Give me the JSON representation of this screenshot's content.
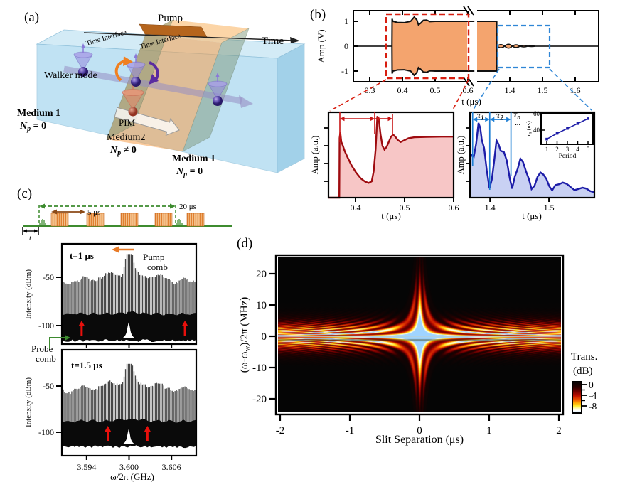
{
  "colors": {
    "orange_fill": "#f4a46e",
    "red_dash": "#d81e10",
    "blue_dash": "#2f86d6",
    "dark_red": "#9e0b0f",
    "pink_fill": "#f7c6c6",
    "dark_blue": "#1d1da8",
    "blue_fill": "#c9d1f3",
    "green": "#3d8b2f",
    "brown": "#8b4a17",
    "pump_orange": "#e87a26",
    "red_arrow": "#e8100c",
    "navy": "#15256e",
    "purple": "#6a3fa0",
    "medium2_orange": "#e06010"
  },
  "panel_a": {
    "label": "(a)",
    "time": "Time",
    "pump": "Pump",
    "interface1": "Time Interface",
    "interface2": "Time Interface",
    "walker": "Walker mode",
    "pim": "PIM",
    "medium1_left": "Medium 1",
    "medium2": "Medium2",
    "medium1_right": "Medium 1",
    "np_base": "N",
    "np_sub": "p",
    "np_eq0": " = 0",
    "np_neq0": " ≠ 0"
  },
  "panel_b": {
    "label": "(b)",
    "ylabel": "Amp (V)",
    "xlabel": "t (μs)",
    "red_inset": {
      "ylabel": "Amp (a.u.)",
      "xlabel": "t (μs)"
    },
    "blue_inset": {
      "ylabel": "Amp (a.u.)",
      "xlabel": "t (μs)",
      "tau_base": "τ",
      "tau1_sub": "1",
      "tau2_sub": "2",
      "taun_sub": "n",
      "dots": "..."
    },
    "period_inset": {
      "ylabel_base": "τ",
      "ylabel_sub": "n",
      "ylabel_rest": " (ns)",
      "xlabel": "Period"
    }
  },
  "panel_c": {
    "label": "(c)",
    "t_label": "t",
    "five_us": "5 μs",
    "twenty_us": "20 μs",
    "plot1_title": "t=1 μs",
    "plot2_title": "t=1.5 μs",
    "ylabel": "Intensity (dBm)",
    "xlabel": "ω/2π (GHz)",
    "pump_line1": "Pump",
    "pump_line2": "comb",
    "probe_line1": "Probe",
    "probe_line2": "comb"
  },
  "panel_d": {
    "label": "(d)",
    "xlabel": "Slit Separation (μs)",
    "ylabel_pre": "(ω-ω",
    "ylabel_sub": "w",
    "ylabel_post": ")/2π (MHz)",
    "colorbar_title1": "Trans.",
    "colorbar_title2": "(dB)"
  },
  "chart_data": [
    {
      "id": "b_main",
      "type": "area",
      "xlabel": "t (μs)",
      "ylabel": "Amp (V)",
      "x_ticks_left": [
        [
          0.3,
          "0.3"
        ],
        [
          0.4,
          "0.4"
        ],
        [
          0.5,
          "0.5"
        ],
        [
          0.6,
          "0.6"
        ]
      ],
      "x_ticks_right": [
        [
          1.4,
          "1.4"
        ],
        [
          1.5,
          "1.5"
        ],
        [
          1.6,
          "1.6"
        ]
      ],
      "y_ticks": [
        [
          1,
          "1"
        ],
        [
          0,
          "0"
        ],
        [
          -1,
          "-1"
        ]
      ],
      "broken_axis": true,
      "pulse_on_us": 0.368,
      "pulse_off_us": 1.36,
      "amp_V": 1.0,
      "envelope_top": [
        [
          0.368,
          0
        ],
        [
          0.3685,
          1.1
        ],
        [
          0.371,
          1.0
        ],
        [
          0.385,
          0.955
        ],
        [
          0.405,
          0.945
        ],
        [
          0.425,
          1.0
        ],
        [
          0.436,
          1.17
        ],
        [
          0.444,
          1.06
        ],
        [
          0.449,
          0.86
        ],
        [
          0.456,
          0.93
        ],
        [
          0.464,
          1.04
        ],
        [
          0.474,
          1.05
        ],
        [
          0.484,
          0.99
        ],
        [
          0.5,
          1.0
        ],
        [
          0.62,
          1.0
        ]
      ],
      "ringdown": {
        "start_us": 1.3725,
        "period_us": 0.0235,
        "amps_V": [
          0.13,
          0.155,
          0.11,
          0.055,
          0.028
        ]
      },
      "red_box_t": [
        0.35,
        0.602
      ],
      "blue_box_t": [
        1.363,
        1.522
      ]
    },
    {
      "id": "b_zoom_red",
      "type": "line",
      "xlabel": "t (μs)",
      "ylabel": "Amp (a.u.)",
      "x_ticks": [
        [
          0.4,
          "0.4"
        ],
        [
          0.5,
          "0.5"
        ],
        [
          0.6,
          "0.6"
        ]
      ],
      "x_range": [
        0.345,
        0.6
      ],
      "marker_lines_t": [
        0.368,
        0.439,
        0.475
      ],
      "points": [
        [
          0.345,
          0
        ],
        [
          0.367,
          0
        ],
        [
          0.3675,
          0.64
        ],
        [
          0.369,
          0.7
        ],
        [
          0.371,
          0.6
        ],
        [
          0.374,
          0.56
        ],
        [
          0.378,
          0.5
        ],
        [
          0.384,
          0.43
        ],
        [
          0.392,
          0.345
        ],
        [
          0.401,
          0.27
        ],
        [
          0.411,
          0.205
        ],
        [
          0.42,
          0.17
        ],
        [
          0.427,
          0.158
        ],
        [
          0.433,
          0.175
        ],
        [
          0.437,
          0.28
        ],
        [
          0.441,
          0.52
        ],
        [
          0.4445,
          0.875
        ],
        [
          0.4475,
          0.84
        ],
        [
          0.451,
          0.68
        ],
        [
          0.455,
          0.555
        ],
        [
          0.459,
          0.515
        ],
        [
          0.4635,
          0.545
        ],
        [
          0.468,
          0.6
        ],
        [
          0.4725,
          0.655
        ],
        [
          0.477,
          0.675
        ],
        [
          0.481,
          0.655
        ],
        [
          0.486,
          0.62
        ],
        [
          0.492,
          0.598
        ],
        [
          0.499,
          0.615
        ],
        [
          0.508,
          0.638
        ],
        [
          0.52,
          0.648
        ],
        [
          0.545,
          0.652
        ],
        [
          0.575,
          0.655
        ],
        [
          0.6,
          0.655
        ]
      ]
    },
    {
      "id": "b_zoom_blue",
      "type": "line",
      "xlabel": "t (μs)",
      "ylabel": "Amp (a.u.)",
      "x_ticks": [
        [
          1.4,
          "1.4"
        ],
        [
          1.5,
          "1.5"
        ]
      ],
      "x_range": [
        1.366,
        1.577
      ],
      "tau_lines_t": [
        1.3705,
        1.3995,
        1.4355
      ],
      "points": [
        [
          1.366,
          0.42
        ],
        [
          1.3695,
          0.48
        ],
        [
          1.3725,
          0.44
        ],
        [
          1.3765,
          0.6
        ],
        [
          1.3805,
          0.8
        ],
        [
          1.3835,
          0.76
        ],
        [
          1.386,
          0.62
        ],
        [
          1.39,
          0.52
        ],
        [
          1.3945,
          0.3
        ],
        [
          1.399,
          0.115
        ],
        [
          1.403,
          0.19
        ],
        [
          1.407,
          0.4
        ],
        [
          1.411,
          0.6
        ],
        [
          1.4145,
          0.58
        ],
        [
          1.418,
          0.5
        ],
        [
          1.4235,
          0.5
        ],
        [
          1.4285,
          0.4
        ],
        [
          1.4335,
          0.19
        ],
        [
          1.4375,
          0.095
        ],
        [
          1.442,
          0.21
        ],
        [
          1.447,
          0.33
        ],
        [
          1.4515,
          0.41
        ],
        [
          1.456,
          0.37
        ],
        [
          1.461,
          0.3
        ],
        [
          1.466,
          0.19
        ],
        [
          1.4705,
          0.09
        ],
        [
          1.4755,
          0.135
        ],
        [
          1.4805,
          0.215
        ],
        [
          1.4855,
          0.27
        ],
        [
          1.4905,
          0.255
        ],
        [
          1.4955,
          0.195
        ],
        [
          1.5005,
          0.125
        ],
        [
          1.5055,
          0.085
        ],
        [
          1.511,
          0.115
        ],
        [
          1.517,
          0.155
        ],
        [
          1.5235,
          0.175
        ],
        [
          1.53,
          0.15
        ],
        [
          1.537,
          0.11
        ],
        [
          1.5435,
          0.08
        ],
        [
          1.55,
          0.09
        ],
        [
          1.557,
          0.1
        ],
        [
          1.5635,
          0.085
        ],
        [
          1.57,
          0.072
        ],
        [
          1.577,
          0.07
        ]
      ]
    },
    {
      "id": "b_period",
      "type": "line",
      "xlabel": "Period",
      "ylabel": "τn (ns)",
      "x": [
        1,
        2,
        3,
        4,
        5
      ],
      "y": [
        29,
        36,
        42,
        48,
        54
      ],
      "y_ticks": [
        [
          40,
          "40"
        ],
        [
          60,
          "60"
        ]
      ],
      "x_tick_labels": [
        "1",
        "2",
        "3",
        "4",
        "5"
      ]
    },
    {
      "id": "c_spectra",
      "type": "comb",
      "xlabel": "ω/2π (GHz)",
      "ylabel": "Intensity (dBm)",
      "x_range_GHz": [
        3.5905,
        3.6095
      ],
      "comb_spacing_GHz": 0.0002,
      "center_GHz": 3.6,
      "x_ticks": [
        [
          3.594,
          "3.594"
        ],
        [
          3.6,
          "3.600"
        ],
        [
          3.606,
          "3.606"
        ]
      ],
      "y_ticks": [
        [
          -50,
          "-50"
        ],
        [
          -100,
          "-100"
        ]
      ],
      "peak_dBm": -27,
      "envelope_base_dBm": -57,
      "floor_top_dBm": -88,
      "floor_bottom_dBm": -114,
      "probe_peak_dBm": -96,
      "plots": [
        {
          "title": "t=1 μs",
          "red_arrows_GHz": [
            3.5933,
            3.6079
          ]
        },
        {
          "title": "t=1.5 μs",
          "red_arrows_GHz": [
            3.597,
            3.6026
          ]
        }
      ]
    },
    {
      "id": "d_map",
      "type": "heatmap",
      "xlabel": "Slit Separation (μs)",
      "ylabel": "(ω-ω_w)/2π (MHz)",
      "x_ticks": [
        [
          -2,
          "-2"
        ],
        [
          -1,
          "-1"
        ],
        [
          0,
          "0"
        ],
        [
          1,
          "1"
        ],
        [
          2,
          "2"
        ]
      ],
      "y_ticks": [
        [
          20,
          "20"
        ],
        [
          10,
          "10"
        ],
        [
          0,
          "0"
        ],
        [
          -10,
          "-10"
        ],
        [
          -20,
          "-20"
        ]
      ],
      "x_range": [
        -2.03,
        2.02
      ],
      "y_range": [
        -24.1,
        25.2
      ],
      "colorbar": {
        "ticks": [
          [
            0,
            "0"
          ],
          [
            -4,
            "-4"
          ],
          [
            -8,
            "-8"
          ]
        ],
        "range_dB": [
          0,
          -10
        ]
      },
      "model": {
        "sigma0_MHz": 4.3,
        "sigma_peak_MHz": 12.5,
        "sigma_s_width_us": 0.12,
        "fringe": "cos^2(pi*w*s)"
      },
      "colormap_stops": [
        [
          0,
          "#050505"
        ],
        [
          0.18,
          "#2a0000"
        ],
        [
          0.32,
          "#7a0000"
        ],
        [
          0.45,
          "#c01000"
        ],
        [
          0.58,
          "#ee5500"
        ],
        [
          0.68,
          "#ffaa00"
        ],
        [
          0.78,
          "#ffee33"
        ],
        [
          0.86,
          "#fff9c0"
        ],
        [
          0.93,
          "#ffffff"
        ],
        [
          1,
          "#9fd4ff"
        ]
      ]
    }
  ]
}
